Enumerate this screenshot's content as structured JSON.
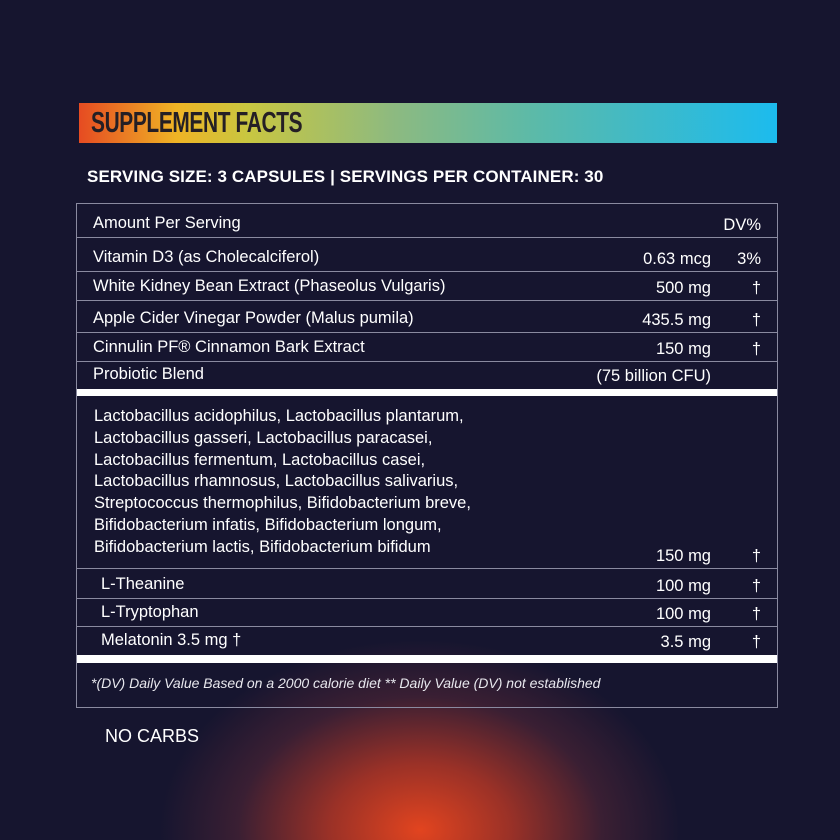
{
  "title": "SUPPLEMENT FACTS",
  "serving_line": "SERVING SIZE: 3 CAPSULES | SERVINGS PER CONTAINER: 30",
  "header": {
    "label": "Amount Per Serving",
    "dv": "DV%"
  },
  "rows": [
    {
      "name": "Vitamin D3 (as Cholecalciferol)",
      "amount": "0.63 mcg",
      "dv": "3%"
    },
    {
      "name": "White Kidney Bean Extract (Phaseolus Vulgaris)",
      "amount": "500 mg",
      "dv": "†"
    },
    {
      "name": "Apple Cider Vinegar Powder (Malus pumila)",
      "amount": "435.5 mg",
      "dv": "†"
    },
    {
      "name": "Cinnulin PF® Cinnamon Bark Extract",
      "amount": "150 mg",
      "dv": "†"
    },
    {
      "name": "Probiotic Blend",
      "amount": "(75 billion CFU)",
      "dv": ""
    }
  ],
  "blend": {
    "lines": [
      "Lactobacillus acidophilus, Lactobacillus plantarum,",
      "Lactobacillus gasseri, Lactobacillus paracasei,",
      "Lactobacillus fermentum, Lactobacillus casei,",
      "Lactobacillus rhamnosus, Lactobacillus salivarius,",
      "Streptococcus thermophilus, Bifidobacterium breve,",
      "Bifidobacterium infatis, Bifidobacterium longum,",
      "Bifidobacterium lactis, Bifidobacterium bifidum"
    ],
    "amount": "150 mg",
    "dv": "†"
  },
  "rows2": [
    {
      "name": "L-Theanine",
      "amount": "100 mg",
      "dv": "†"
    },
    {
      "name": "L-Tryptophan",
      "amount": "100 mg",
      "dv": "†"
    },
    {
      "name": "Melatonin 3.5 mg †",
      "amount": "3.5 mg",
      "dv": "†"
    }
  ],
  "footnote": "*(DV) Daily Value Based on a 2000 calorie diet ** Daily Value (DV) not established",
  "no_carbs": "NO CARBS",
  "colors": {
    "background": "#16152f",
    "glow": "#e2441f",
    "banner_start": "#e64b22",
    "banner_end": "#1cbbee"
  }
}
